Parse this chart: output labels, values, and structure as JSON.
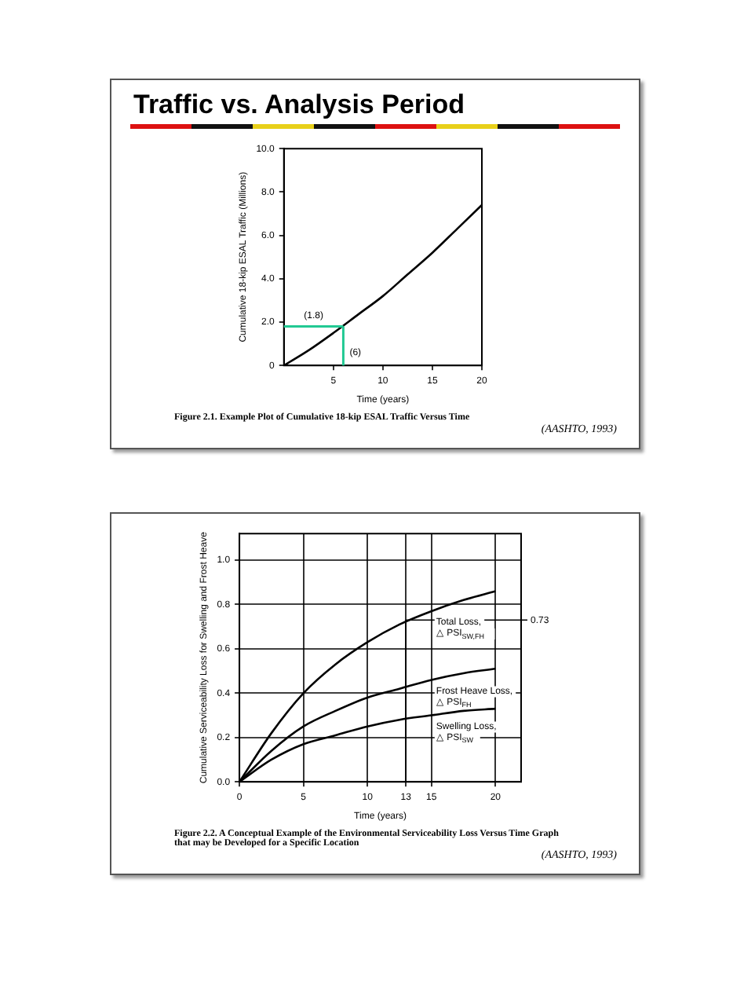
{
  "chart_data": [
    {
      "type": "line",
      "title": "Traffic vs. Analysis Period",
      "xlabel": "Time (years)",
      "ylabel": "Cumulative 18-kip ESAL Traffic (Millions)",
      "series": [
        {
          "color": "#000000",
          "x": [
            0,
            2.5,
            5,
            7.5,
            10,
            12.5,
            15,
            17.5,
            20
          ],
          "values": [
            0,
            0.7,
            1.5,
            2.35,
            3.2,
            4.2,
            5.2,
            6.3,
            7.4
          ]
        }
      ],
      "xlim": [
        0,
        20
      ],
      "xticks": [
        5,
        10,
        15,
        20
      ],
      "ylim": [
        0,
        10
      ],
      "yticks": [
        0,
        {
          "value": 2,
          "label": "2.0"
        },
        {
          "value": 4,
          "label": "4.0"
        },
        {
          "value": 6,
          "label": "6.0"
        },
        {
          "value": 8,
          "label": "8.0"
        },
        {
          "value": 10,
          "label": "10.0"
        }
      ],
      "ref_lines": [
        {
          "axis": "y",
          "value": 1.8,
          "label": "(1.8)",
          "color": "#22c993"
        },
        {
          "axis": "x",
          "value": 6,
          "label": "(6)",
          "color": "#22c993"
        }
      ],
      "annotations": [
        "Figure 2.1.   Example Plot of Cumulative 18-kip ESAL Traffic Versus Time",
        "(AASHTO, 1993)"
      ]
    },
    {
      "type": "line",
      "xlabel": "Time (years)",
      "ylabel": "Cumulative Serviceability Loss for Swelling and Frost Heave",
      "grid": true,
      "series": [
        {
          "name": "Total Loss, △ PSI$_{SW,FH}$",
          "color": "#000000",
          "x": [
            0,
            2.5,
            5,
            7.5,
            10,
            12.5,
            15,
            17.5,
            20
          ],
          "values": [
            0,
            0.22,
            0.4,
            0.53,
            0.63,
            0.71,
            0.77,
            0.82,
            0.86
          ]
        },
        {
          "name": "Frost Heave Loss, △ PSI$_{FH}$",
          "color": "#000000",
          "x": [
            0,
            2.5,
            5,
            7.5,
            10,
            12.5,
            15,
            17.5,
            20
          ],
          "values": [
            0,
            0.14,
            0.25,
            0.32,
            0.38,
            0.42,
            0.46,
            0.49,
            0.51
          ]
        },
        {
          "name": "Swelling Loss, △ PSI$_{SW}$",
          "color": "#000000",
          "x": [
            0,
            2.5,
            5,
            7.5,
            10,
            12.5,
            15,
            17.5,
            20
          ],
          "values": [
            0,
            0.1,
            0.17,
            0.21,
            0.25,
            0.28,
            0.3,
            0.32,
            0.33
          ]
        }
      ],
      "xlim": [
        0,
        22
      ],
      "xticks": [
        0,
        5,
        10,
        13,
        15,
        20
      ],
      "ylim": [
        0,
        1.12
      ],
      "yticks": [
        {
          "value": 0,
          "label": "0.0"
        },
        {
          "value": 0.2,
          "label": "0.2"
        },
        {
          "value": 0.4,
          "label": "0.4"
        },
        {
          "value": 0.6,
          "label": "0.6"
        },
        {
          "value": 0.8,
          "label": "0.8"
        },
        {
          "value": 1,
          "label": "1.0"
        }
      ],
      "annotations": [
        {
          "text": "0.73",
          "x": 13,
          "y": 0.73
        },
        "Figure 2.2.   A Conceptual Example of the Environmental Serviceability Loss Versus Time Graph that may be Developed for a Specific Location",
        "(AASHTO, 1993)"
      ]
    }
  ]
}
